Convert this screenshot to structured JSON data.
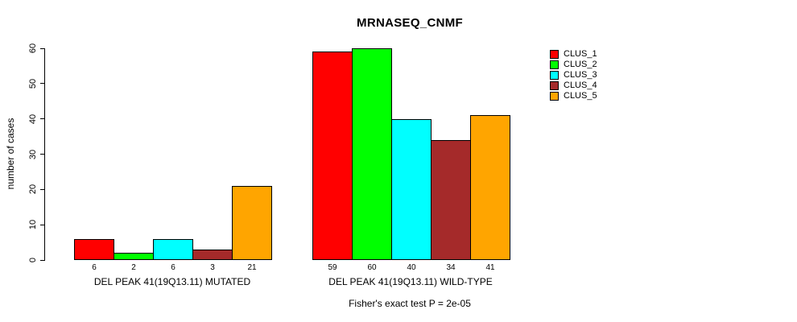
{
  "chart_data": {
    "type": "bar",
    "title": "MRNASEQ_CNMF",
    "ylabel": "number of cases",
    "xlabel": "",
    "ylim": [
      0,
      60
    ],
    "yticks": [
      0,
      10,
      20,
      30,
      40,
      50,
      60
    ],
    "grid": false,
    "legend_position": "right",
    "categories": [
      "DEL PEAK 41(19Q13.11) MUTATED",
      "DEL PEAK 41(19Q13.11) WILD-TYPE"
    ],
    "series": [
      {
        "name": "CLUS_1",
        "color": "#FF0000",
        "values": [
          6,
          59
        ]
      },
      {
        "name": "CLUS_2",
        "color": "#00FF00",
        "values": [
          2,
          60
        ]
      },
      {
        "name": "CLUS_3",
        "color": "#00FFFF",
        "values": [
          6,
          40
        ]
      },
      {
        "name": "CLUS_4",
        "color": "#A52A2A",
        "values": [
          3,
          34
        ]
      },
      {
        "name": "CLUS_5",
        "color": "#FFA500",
        "values": [
          21,
          41
        ]
      }
    ],
    "bar_value_labels": [
      [
        "6",
        "2",
        "6",
        "3",
        "21"
      ],
      [
        "59",
        "60",
        "40",
        "34",
        "41"
      ]
    ],
    "footnote": "Fisher's exact test P = 2e-05",
    "axis_color": "#000000",
    "background_color": "#FFFFFF"
  }
}
